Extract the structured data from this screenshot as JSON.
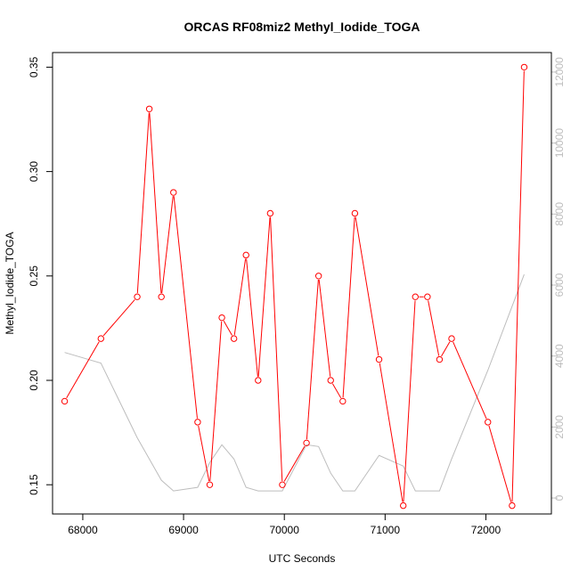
{
  "chart_data": {
    "type": "line",
    "title": "ORCAS RF08miz2 Methyl_Iodide_TOGA",
    "xlabel": "UTC Seconds",
    "ylabel": "Methyl_Iodide_TOGA",
    "xlim": [
      67700,
      72650
    ],
    "ylim": [
      0.136,
      0.357
    ],
    "y2lim": [
      -450,
      12550
    ],
    "x_ticks": [
      "68000",
      "69000",
      "70000",
      "71000",
      "72000"
    ],
    "y_ticks": [
      "0.15",
      "0.20",
      "0.25",
      "0.30",
      "0.35"
    ],
    "y2_ticks": [
      "0",
      "2000",
      "4000",
      "6000",
      "8000",
      "10000",
      "12000"
    ],
    "series": [
      {
        "color": "#ff0000",
        "axis": "left",
        "markers": true,
        "x": [
          67820,
          68180,
          68540,
          68660,
          68780,
          68900,
          69140,
          69260,
          69380,
          69500,
          69620,
          69740,
          69860,
          69980,
          70220,
          70340,
          70460,
          70580,
          70700,
          70940,
          71180,
          71300,
          71420,
          71540,
          71660,
          72020,
          72260,
          72380
        ],
        "y": [
          0.19,
          0.22,
          0.24,
          0.33,
          0.24,
          0.29,
          0.18,
          0.15,
          0.23,
          0.22,
          0.26,
          0.2,
          0.28,
          0.15,
          0.17,
          0.25,
          0.2,
          0.19,
          0.28,
          0.21,
          0.14,
          0.24,
          0.24,
          0.21,
          0.22,
          0.18,
          0.14,
          0.35
        ]
      },
      {
        "color": "#bdbdbd",
        "axis": "right",
        "markers": false,
        "x": [
          67820,
          68180,
          68540,
          68780,
          68900,
          69140,
          69260,
          69380,
          69500,
          69620,
          69740,
          69980,
          70220,
          70340,
          70460,
          70580,
          70700,
          70940,
          71180,
          71300,
          71540,
          71660,
          72020,
          72380
        ],
        "y": [
          4100,
          3800,
          1700,
          500,
          200,
          300,
          1000,
          1500,
          1100,
          300,
          200,
          200,
          1500,
          1450,
          700,
          200,
          200,
          1200,
          900,
          200,
          200,
          1100,
          3600,
          6300
        ]
      }
    ]
  }
}
